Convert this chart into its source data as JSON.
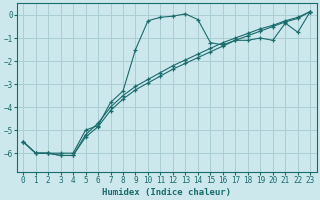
{
  "xlabel": "Humidex (Indice chaleur)",
  "bg_color": "#cce8ed",
  "grid_color": "#aacdd4",
  "line_color": "#1a6b6b",
  "xlim": [
    -0.5,
    23.5
  ],
  "ylim": [
    -6.8,
    0.5
  ],
  "yticks": [
    0,
    -1,
    -2,
    -3,
    -4,
    -5,
    -6
  ],
  "xticks": [
    0,
    1,
    2,
    3,
    4,
    5,
    6,
    7,
    8,
    9,
    10,
    11,
    12,
    13,
    14,
    15,
    16,
    17,
    18,
    19,
    20,
    21,
    22,
    23
  ],
  "curve1_x": [
    0,
    1,
    2,
    3,
    4,
    5,
    6,
    7,
    8,
    9,
    10,
    11,
    12,
    13,
    14,
    15,
    16,
    17,
    18,
    19,
    20,
    21,
    22,
    23
  ],
  "curve1_y": [
    -5.5,
    -6.0,
    -6.0,
    -6.0,
    -6.0,
    -5.0,
    -4.8,
    -3.8,
    -3.3,
    -1.5,
    -0.25,
    -0.1,
    -0.05,
    0.05,
    -0.2,
    -1.2,
    -1.3,
    -1.1,
    -1.1,
    -1.0,
    -1.1,
    -0.35,
    -0.75,
    0.15
  ],
  "curve2_x": [
    0,
    1,
    2,
    3,
    4,
    5,
    6,
    7,
    8,
    9,
    10,
    11,
    12,
    13,
    14,
    15,
    16,
    17,
    18,
    19,
    20,
    21,
    22,
    23
  ],
  "curve2_y": [
    -5.5,
    -6.0,
    -6.0,
    -6.1,
    -6.1,
    -5.2,
    -4.7,
    -4.0,
    -3.5,
    -3.1,
    -2.8,
    -2.5,
    -2.2,
    -1.95,
    -1.7,
    -1.45,
    -1.2,
    -1.0,
    -0.8,
    -0.6,
    -0.45,
    -0.25,
    -0.1,
    0.15
  ],
  "curve3_x": [
    0,
    1,
    2,
    3,
    4,
    5,
    6,
    7,
    8,
    9,
    10,
    11,
    12,
    13,
    14,
    15,
    16,
    17,
    18,
    19,
    20,
    21,
    22,
    23
  ],
  "curve3_y": [
    -5.5,
    -6.0,
    -6.0,
    -6.1,
    -6.1,
    -5.3,
    -4.85,
    -4.15,
    -3.65,
    -3.25,
    -2.95,
    -2.65,
    -2.35,
    -2.1,
    -1.85,
    -1.6,
    -1.35,
    -1.1,
    -0.9,
    -0.7,
    -0.5,
    -0.3,
    -0.15,
    0.15
  ]
}
